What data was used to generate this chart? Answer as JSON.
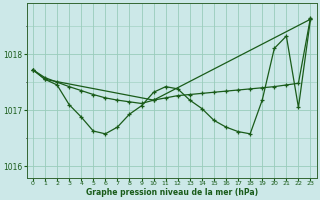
{
  "xlabel": "Graphe pression niveau de la mer (hPa)",
  "bg_color": "#cce8e8",
  "grid_color": "#99ccbb",
  "line_color": "#1a5c1a",
  "ylim": [
    1015.8,
    1018.9
  ],
  "xlim": [
    -0.5,
    23.5
  ],
  "yticks": [
    1016,
    1017,
    1018
  ],
  "xticks": [
    0,
    1,
    2,
    3,
    4,
    5,
    6,
    7,
    8,
    9,
    10,
    11,
    12,
    13,
    14,
    15,
    16,
    17,
    18,
    19,
    20,
    21,
    22,
    23
  ],
  "series1": {
    "x": [
      0,
      1,
      2,
      3,
      4,
      5,
      6,
      7,
      8,
      9,
      10,
      11,
      12,
      13,
      14,
      15,
      16,
      17,
      18,
      19,
      20,
      21,
      22,
      23
    ],
    "y": [
      1017.72,
      1017.58,
      1017.5,
      1017.42,
      1017.35,
      1017.28,
      1017.22,
      1017.18,
      1017.15,
      1017.12,
      1017.18,
      1017.22,
      1017.26,
      1017.28,
      1017.3,
      1017.32,
      1017.34,
      1017.36,
      1017.38,
      1017.4,
      1017.42,
      1017.45,
      1017.48,
      1018.65
    ]
  },
  "series2": {
    "x": [
      0,
      1,
      2,
      3,
      4,
      5,
      6,
      7,
      8,
      9,
      10,
      11,
      12,
      13,
      14,
      15,
      16,
      17,
      18,
      19,
      20,
      21,
      22,
      23
    ],
    "y": [
      1017.72,
      1017.55,
      1017.45,
      1017.1,
      1016.88,
      1016.63,
      1016.58,
      1016.7,
      1016.93,
      1017.08,
      1017.32,
      1017.42,
      1017.38,
      1017.18,
      1017.03,
      1016.82,
      1016.7,
      1016.62,
      1016.58,
      1017.18,
      1018.1,
      1018.32,
      1017.05,
      1018.62
    ]
  },
  "series3": {
    "x": [
      0,
      1,
      10,
      23
    ],
    "y": [
      1017.72,
      1017.55,
      1017.18,
      1018.62
    ]
  }
}
